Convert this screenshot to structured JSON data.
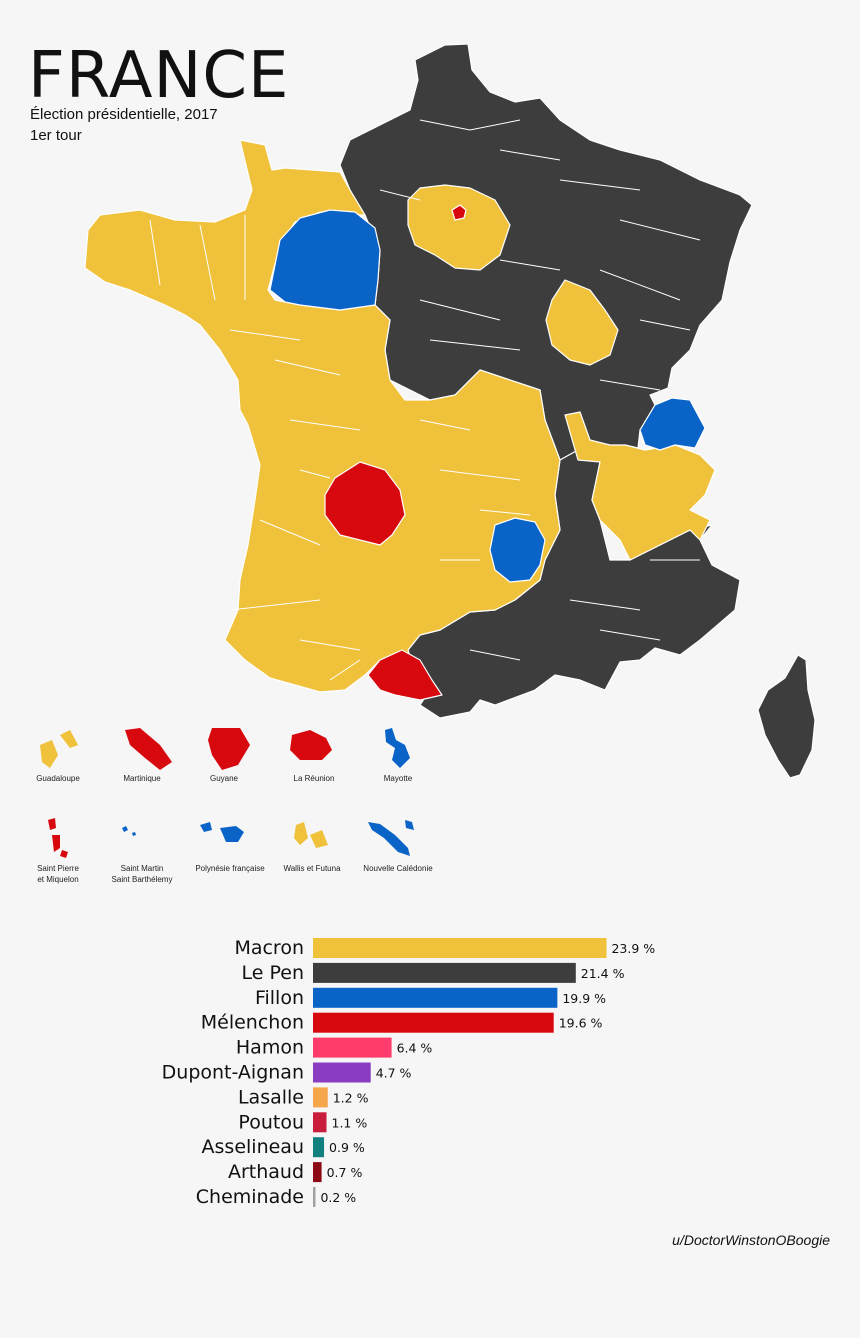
{
  "header": {
    "title": "FRANCE",
    "subtitle": "Élection présidentielle, 2017",
    "round": "1er tour"
  },
  "colors": {
    "Macron": "#f0c13b",
    "Le Pen": "#3d3d3d",
    "Fillon": "#0a64c8",
    "Mélenchon": "#d7090e",
    "Hamon": "#ff3c6b",
    "Dupont-Aignan": "#8a3cc3",
    "Lasalle": "#f5a54a",
    "Poutou": "#c81e3c",
    "Asselineau": "#138080",
    "Arthaud": "#8c0a14",
    "Cheminade": "#a0a0a0",
    "border": "#ffffff"
  },
  "overseas": [
    {
      "label": "Guadaloupe",
      "winner": "Macron",
      "icon": "guadeloupe-shape"
    },
    {
      "label": "Martinique",
      "winner": "Mélenchon",
      "icon": "martinique-shape"
    },
    {
      "label": "Guyane",
      "winner": "Mélenchon",
      "icon": "guyane-shape"
    },
    {
      "label": "La Réunion",
      "winner": "Mélenchon",
      "icon": "reunion-shape"
    },
    {
      "label": "Mayotte",
      "winner": "Fillon",
      "icon": "mayotte-shape"
    },
    {
      "label": "Saint Pierre\net Miquelon",
      "winner": "Mélenchon",
      "icon": "saint-pierre-shape"
    },
    {
      "label": "Saint Martin\nSaint Barthélemy",
      "winner": "Fillon",
      "icon": "saint-martin-shape"
    },
    {
      "label": "Polynésie française",
      "winner": "Fillon",
      "icon": "polynesie-shape"
    },
    {
      "label": "Wallis et Futuna",
      "winner": "Macron",
      "icon": "wallis-shape"
    },
    {
      "label": "Nouvelle Calédonie",
      "winner": "Fillon",
      "icon": "caledonie-shape"
    }
  ],
  "chart_data": {
    "type": "bar",
    "orientation": "horizontal",
    "categories": [
      "Macron",
      "Le Pen",
      "Fillon",
      "Mélenchon",
      "Hamon",
      "Dupont-Aignan",
      "Lasalle",
      "Poutou",
      "Asselineau",
      "Arthaud",
      "Cheminade"
    ],
    "values": [
      23.9,
      21.4,
      19.9,
      19.6,
      6.4,
      4.7,
      1.2,
      1.1,
      0.9,
      0.7,
      0.2
    ],
    "value_labels": [
      "23.9 %",
      "21.4 %",
      "19.9 %",
      "19.6 %",
      "6.4 %",
      "4.7 %",
      "1.2 %",
      "1.1 %",
      "0.9 %",
      "0.7 %",
      "0.2 %"
    ]
  },
  "credit": "u/DoctorWinstonOBoogie"
}
